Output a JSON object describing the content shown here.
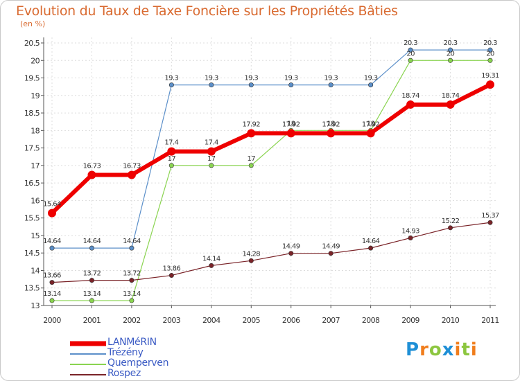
{
  "colors": {
    "title": "#d96a30",
    "grid": "#dddddd",
    "axis": "#555555",
    "legend_text": "#3b5bc4"
  },
  "chart_data": {
    "type": "line",
    "title": "Evolution du Taux de Taxe Foncière sur les Propriétés Bâties",
    "ylabel": "(en %)",
    "xlabel": "",
    "ylim": [
      13,
      20.5
    ],
    "yticks": [
      "13",
      "13.5",
      "14",
      "14.5",
      "15",
      "15.5",
      "16",
      "16.5",
      "17",
      "17.5",
      "18",
      "18.5",
      "19",
      "19.5",
      "20",
      "20.5"
    ],
    "x": [
      "2000",
      "2001",
      "2002",
      "2003",
      "2004",
      "2005",
      "2006",
      "2007",
      "2008",
      "2009",
      "2010",
      "2011"
    ],
    "grid": true,
    "series": [
      {
        "name": "Trézény",
        "color": "#5b8fc9",
        "width": 1.2,
        "marker": 3.2,
        "values": [
          14.64,
          14.64,
          14.64,
          19.3,
          19.3,
          19.3,
          19.3,
          19.3,
          19.3,
          20.3,
          20.3,
          20.3
        ],
        "labels": [
          "14.64",
          "14.64",
          "14.64",
          "19.3",
          "19.3",
          "19.3",
          "19.3",
          "19.3",
          "19.3",
          "20.3",
          "20.3",
          "20.3"
        ]
      },
      {
        "name": "Quemperven",
        "color": "#8ad450",
        "width": 1.2,
        "marker": 3.2,
        "values": [
          13.14,
          13.14,
          13.14,
          17,
          17,
          17,
          18,
          18,
          18,
          20,
          20,
          20
        ],
        "labels": [
          "13.14",
          "13.14",
          "13.14",
          "17",
          "17",
          "17",
          "18",
          "18",
          "18",
          "20",
          "20",
          "20"
        ]
      },
      {
        "name": "Rospez",
        "color": "#7a2328",
        "width": 1.2,
        "marker": 3.2,
        "values": [
          13.66,
          13.72,
          13.72,
          13.86,
          14.14,
          14.28,
          14.49,
          14.49,
          14.64,
          14.93,
          15.22,
          15.37
        ],
        "labels": [
          "13.66",
          "13.72",
          "13.72",
          "13.86",
          "14.14",
          "14.28",
          "14.49",
          "14.49",
          "14.64",
          "14.93",
          "15.22",
          "15.37"
        ]
      },
      {
        "name": "LANMéRIN",
        "color": "#ee0000",
        "width": 6,
        "marker": 6,
        "values": [
          15.64,
          16.73,
          16.73,
          17.4,
          17.4,
          17.92,
          17.92,
          17.92,
          17.92,
          18.74,
          18.74,
          19.31
        ],
        "labels": [
          "15.64",
          "16.73",
          "16.73",
          "17.4",
          "17.4",
          "17.92",
          "17.92",
          "17.92",
          "17.92",
          "18.74",
          "18.74",
          "19.31"
        ]
      }
    ],
    "legend": {
      "position": "bottom-left",
      "items": [
        {
          "name": "LANMéRIN",
          "color": "#ee0000"
        },
        {
          "name": "Trézény",
          "color": "#5b8fc9"
        },
        {
          "name": "Quemperven",
          "color": "#8ad450"
        },
        {
          "name": "Rospez",
          "color": "#7a2328"
        }
      ]
    }
  },
  "logo": {
    "letters": [
      "P",
      "r",
      "o",
      "x",
      "i",
      "t",
      "i"
    ],
    "colors": [
      "#1e8fd6",
      "#f07d1c",
      "#8cc63f",
      "#1e8fd6",
      "#f07d1c",
      "#8cc63f",
      "#f07d1c"
    ]
  }
}
